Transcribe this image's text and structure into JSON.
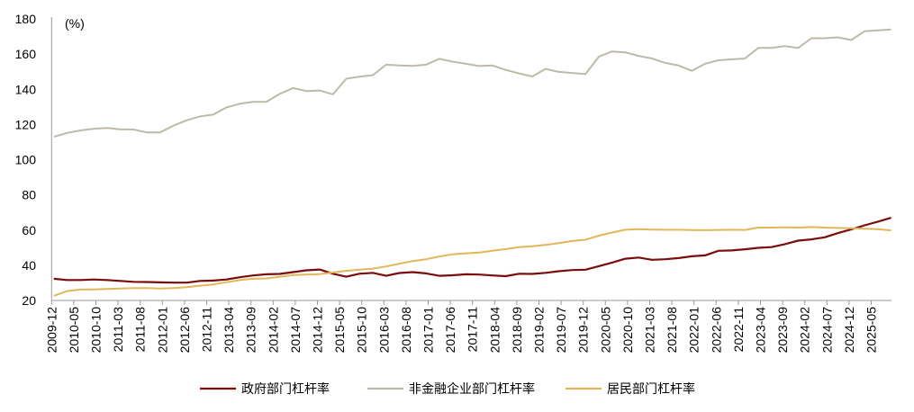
{
  "chart_data": {
    "type": "line",
    "unit_label": "(%)",
    "ylim": [
      20,
      180
    ],
    "yticks": [
      20,
      40,
      60,
      80,
      100,
      120,
      140,
      160,
      180
    ],
    "grid": false,
    "legend_position": "bottom",
    "x_start": "2009-12",
    "x_frequency": "quarterly",
    "x_tick_labels": [
      "2009-12",
      "2010-05",
      "2010-10",
      "2011-03",
      "2011-08",
      "2012-01",
      "2012-06",
      "2012-11",
      "2013-04",
      "2013-09",
      "2014-02",
      "2014-07",
      "2014-12",
      "2015-05",
      "2015-10",
      "2016-03",
      "2016-08",
      "2017-01",
      "2017-06",
      "2017-11",
      "2018-04",
      "2018-09",
      "2019-02",
      "2019-07",
      "2019-12",
      "2020-05",
      "2020-10",
      "2021-03",
      "2021-08",
      "2022-01",
      "2022-06",
      "2022-11",
      "2023-04",
      "2023-09",
      "2024-02",
      "2024-07",
      "2024-12",
      "2025-05"
    ],
    "x": [
      "2009-12",
      "2010-03",
      "2010-06",
      "2010-09",
      "2010-12",
      "2011-03",
      "2011-06",
      "2011-09",
      "2011-12",
      "2012-03",
      "2012-06",
      "2012-09",
      "2012-12",
      "2013-03",
      "2013-06",
      "2013-09",
      "2013-12",
      "2014-03",
      "2014-06",
      "2014-09",
      "2014-12",
      "2015-03",
      "2015-06",
      "2015-09",
      "2015-12",
      "2016-03",
      "2016-06",
      "2016-09",
      "2016-12",
      "2017-03",
      "2017-06",
      "2017-09",
      "2017-12",
      "2018-03",
      "2018-06",
      "2018-09",
      "2018-12",
      "2019-03",
      "2019-06",
      "2019-09",
      "2019-12",
      "2020-03",
      "2020-06",
      "2020-09",
      "2020-12",
      "2021-03",
      "2021-06",
      "2021-09",
      "2021-12",
      "2022-03",
      "2022-06",
      "2022-09",
      "2022-12",
      "2023-03",
      "2023-06",
      "2023-09",
      "2023-12",
      "2024-03",
      "2024-06",
      "2024-09",
      "2024-12",
      "2025-03",
      "2025-06",
      "2025-09"
    ],
    "series": [
      {
        "name": "政府部门杠杆率",
        "color": "#7B0C0C",
        "values": [
          32.3,
          31.6,
          31.6,
          31.9,
          31.6,
          31.1,
          30.6,
          30.5,
          30.3,
          30.1,
          30.1,
          31.1,
          31.3,
          31.9,
          33.2,
          34.2,
          34.9,
          35.1,
          36.1,
          37.1,
          37.6,
          35.2,
          33.5,
          35.2,
          35.7,
          34.0,
          35.6,
          36.1,
          35.4,
          34.0,
          34.3,
          34.9,
          34.7,
          34.2,
          33.8,
          35.2,
          35.1,
          35.7,
          36.6,
          37.3,
          37.5,
          39.5,
          41.5,
          43.7,
          44.4,
          43.1,
          43.4,
          44.1,
          45.1,
          45.6,
          48.2,
          48.4,
          49.1,
          49.9,
          50.3,
          52.0,
          54.0,
          54.7,
          55.9,
          58.3,
          60.4,
          62.7,
          64.8,
          67.0
        ]
      },
      {
        "name": "非金融企业部门杠杆率",
        "color": "#BEBAA8",
        "values": [
          113.0,
          115.2,
          116.6,
          117.6,
          118.0,
          117.3,
          117.1,
          115.5,
          115.5,
          119.3,
          122.4,
          124.6,
          125.6,
          129.7,
          131.8,
          132.8,
          132.9,
          137.4,
          140.7,
          139.0,
          139.3,
          137.1,
          146.0,
          147.2,
          148.0,
          154.0,
          153.5,
          153.3,
          154.0,
          157.3,
          155.7,
          154.5,
          153.2,
          153.5,
          151.0,
          149.0,
          147.3,
          151.6,
          149.9,
          149.3,
          148.6,
          158.5,
          161.5,
          161.0,
          159.0,
          157.5,
          155.0,
          153.5,
          150.5,
          154.5,
          156.5,
          157.0,
          157.5,
          163.5,
          163.5,
          164.5,
          163.5,
          169.0,
          169.0,
          169.5,
          168.0,
          173.0,
          173.5,
          174.0
        ]
      },
      {
        "name": "居民部门杠杆率",
        "color": "#E2B65A",
        "values": [
          22.6,
          25.3,
          26.2,
          26.3,
          26.5,
          26.8,
          27.0,
          27.0,
          26.8,
          27.0,
          27.5,
          28.4,
          29.1,
          30.4,
          31.6,
          32.3,
          32.5,
          33.5,
          34.4,
          34.7,
          35.0,
          35.9,
          36.8,
          37.5,
          38.1,
          39.3,
          40.9,
          42.4,
          43.4,
          45.0,
          46.2,
          46.8,
          47.2,
          48.2,
          49.2,
          50.3,
          50.8,
          51.6,
          52.6,
          53.8,
          54.5,
          56.8,
          58.6,
          60.2,
          60.5,
          60.3,
          60.2,
          60.2,
          60.0,
          59.9,
          60.1,
          60.2,
          60.1,
          61.4,
          61.4,
          61.6,
          61.4,
          61.7,
          61.4,
          61.2,
          61.0,
          60.8,
          60.5,
          59.8
        ]
      }
    ]
  }
}
